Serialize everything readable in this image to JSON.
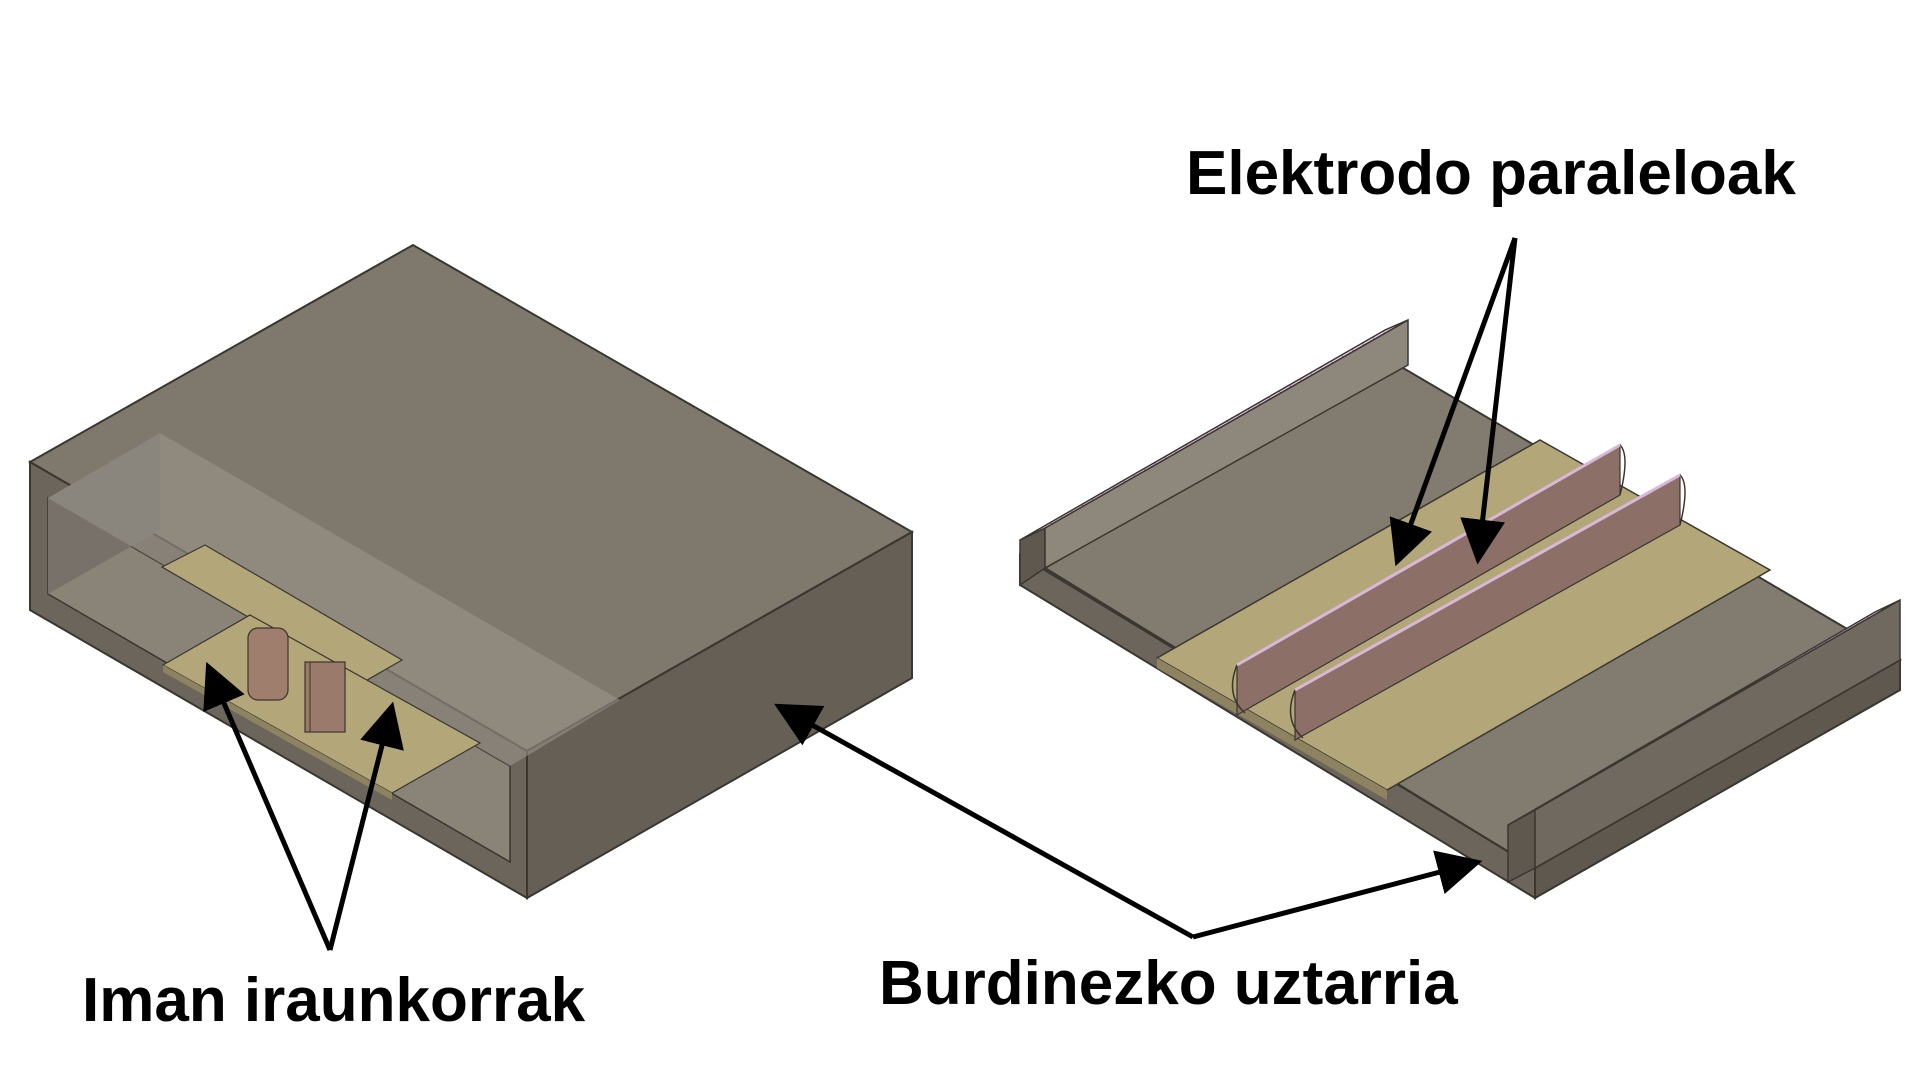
{
  "labels": {
    "electrodes": "Elektrodo paraleloak",
    "magnets": "Iman iraunkorrak",
    "yoke": "Burdinezko uztarria"
  },
  "colors": {
    "background": "#ffffff",
    "iron_top": "#7f786d",
    "iron_front": "#6c655b",
    "iron_side": "#655f55",
    "iron_inner": "#8a8478",
    "insulator_plate": "#b3a679",
    "electrode": "#8c7068",
    "hatch_section": "#e8b6e8",
    "annotation": "#000000"
  },
  "icons": {
    "arrowhead": "arrowhead-icon",
    "hatch": "hatch-pattern-icon"
  }
}
